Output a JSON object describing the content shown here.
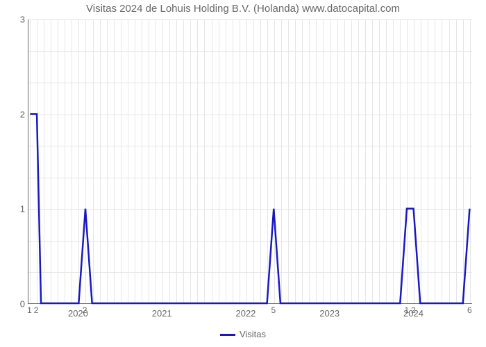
{
  "chart": {
    "type": "line",
    "title": "Visitas 2024 de Lohuis Holding B.V. (Holanda) www.datocapital.com",
    "title_fontsize": 15,
    "background_color": "#ffffff",
    "grid_color": "#e6e6e6",
    "axis_color": "#666666",
    "text_color": "#666666",
    "line_color": "#1919c1",
    "line_width": 2.5,
    "y": {
      "min": 0,
      "max": 3,
      "ticks": [
        0,
        1,
        2,
        3
      ]
    },
    "x": {
      "min": 2019.4,
      "max": 2024.7,
      "year_ticks": [
        2020,
        2021,
        2022,
        2023,
        2024
      ],
      "minor_grid": [
        2019.5,
        2020.5,
        2021.5,
        2022.5,
        2023.5,
        2024.5
      ],
      "xgrid_month_step": 0.0833,
      "minor_labels": [
        {
          "x": 2019.42,
          "label": "1"
        },
        {
          "x": 2019.5,
          "label": "2"
        },
        {
          "x": 2020.08,
          "label": "2"
        },
        {
          "x": 2022.33,
          "label": "5"
        },
        {
          "x": 2023.92,
          "label": "1"
        },
        {
          "x": 2024.0,
          "label": "2"
        },
        {
          "x": 2024.67,
          "label": "6"
        }
      ]
    },
    "series": {
      "name": "Visitas",
      "points": [
        [
          2019.42,
          2.0
        ],
        [
          2019.5,
          2.0
        ],
        [
          2019.55,
          0.0
        ],
        [
          2020.0,
          0.0
        ],
        [
          2020.08,
          1.0
        ],
        [
          2020.16,
          0.0
        ],
        [
          2022.25,
          0.0
        ],
        [
          2022.33,
          1.0
        ],
        [
          2022.41,
          0.0
        ],
        [
          2023.84,
          0.0
        ],
        [
          2023.92,
          1.0
        ],
        [
          2024.0,
          1.0
        ],
        [
          2024.08,
          0.0
        ],
        [
          2024.59,
          0.0
        ],
        [
          2024.67,
          1.0
        ]
      ]
    },
    "legend": {
      "label": "Visitas",
      "swatch_color": "#1919c1"
    }
  }
}
